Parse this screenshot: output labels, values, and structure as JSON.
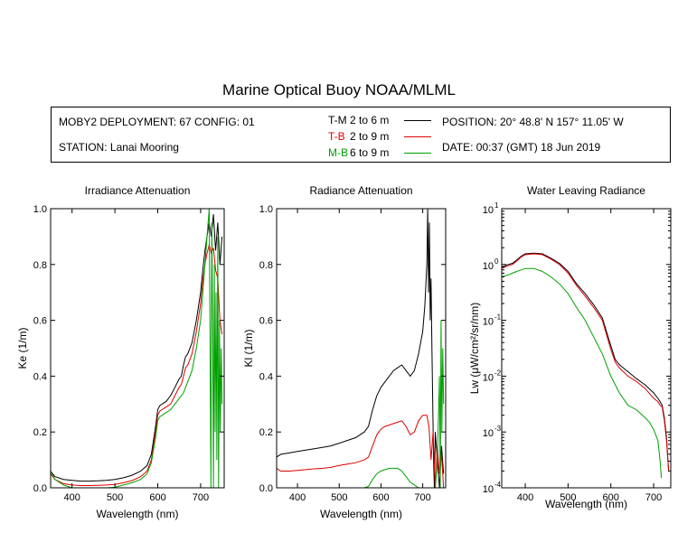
{
  "title": "Marine Optical Buoy NOAA/MLML",
  "info": {
    "deployment": "MOBY2 DEPLOYMENT: 67 CONFIG: 01",
    "station": "STATION: Lanai Mooring",
    "position": "POSITION: 20° 48.8' N   157° 11.05' W",
    "date": "DATE: 00:37 (GMT) 18 Jun 2019"
  },
  "legend": [
    {
      "code": "T-M",
      "range": "2 to 6  m",
      "color": "#000000"
    },
    {
      "code": "T-B",
      "range": "2 to 9  m",
      "color": "#dd0000"
    },
    {
      "code": "M-B",
      "range": "6 to 9  m",
      "color": "#00a000"
    }
  ],
  "chart_data": [
    {
      "type": "line",
      "title": "Irradiance Attenuation",
      "xlabel": "Wavelength (nm)",
      "ylabel": "Ke  (1/m)",
      "xlim": [
        350,
        755
      ],
      "ylim": [
        0,
        1.0
      ],
      "xticks": [
        400,
        500,
        600,
        700
      ],
      "yticks": [
        0.0,
        0.2,
        0.4,
        0.6,
        0.8,
        1.0
      ],
      "ytick_labels": [
        "0.0",
        "0.2",
        "0.4",
        "0.6",
        "0.8",
        "1.0"
      ],
      "series": [
        {
          "name": "T-M",
          "color": "#000000",
          "x": [
            350,
            360,
            380,
            400,
            420,
            440,
            460,
            480,
            500,
            520,
            540,
            560,
            575,
            585,
            595,
            600,
            605,
            610,
            615,
            620,
            630,
            640,
            650,
            655,
            660,
            665,
            670,
            680,
            690,
            700,
            705,
            710,
            715,
            720,
            725,
            730,
            735,
            740,
            745,
            750
          ],
          "y": [
            0.06,
            0.04,
            0.03,
            0.027,
            0.024,
            0.024,
            0.025,
            0.027,
            0.03,
            0.036,
            0.045,
            0.06,
            0.08,
            0.12,
            0.22,
            0.28,
            0.295,
            0.3,
            0.305,
            0.31,
            0.33,
            0.36,
            0.39,
            0.4,
            0.44,
            0.47,
            0.48,
            0.52,
            0.6,
            0.7,
            0.78,
            0.85,
            0.9,
            0.95,
            0.9,
            0.98,
            0.85,
            0.95,
            0.8,
            0.9
          ]
        },
        {
          "name": "T-B",
          "color": "#dd0000",
          "x": [
            350,
            360,
            380,
            400,
            420,
            440,
            460,
            480,
            500,
            520,
            540,
            560,
            575,
            585,
            595,
            600,
            605,
            610,
            615,
            620,
            630,
            640,
            650,
            655,
            660,
            665,
            670,
            680,
            690,
            700,
            705,
            710,
            715,
            720,
            725,
            730,
            735,
            740,
            745,
            750
          ],
          "y": [
            0.05,
            0.03,
            0.015,
            0.01,
            0.008,
            0.008,
            0.009,
            0.01,
            0.012,
            0.018,
            0.026,
            0.04,
            0.06,
            0.1,
            0.2,
            0.26,
            0.275,
            0.28,
            0.285,
            0.29,
            0.3,
            0.33,
            0.36,
            0.37,
            0.4,
            0.43,
            0.44,
            0.48,
            0.56,
            0.66,
            0.74,
            0.8,
            0.84,
            0.87,
            0.84,
            0.86,
            0.78,
            0.75,
            0.6,
            0.55
          ]
        },
        {
          "name": "M-B",
          "color": "#00a000",
          "x": [
            350,
            360,
            380,
            400,
            420,
            440,
            460,
            480,
            500,
            520,
            540,
            560,
            575,
            585,
            595,
            600,
            605,
            610,
            615,
            620,
            630,
            640,
            650,
            660,
            670,
            680,
            690,
            700,
            705,
            710,
            715,
            720,
            722,
            724,
            726,
            728,
            730,
            732,
            734,
            736,
            738,
            740,
            742,
            744,
            746,
            748,
            750
          ],
          "y": [
            0.06,
            0.03,
            0.01,
            0.0,
            0.0,
            0.0,
            0.0,
            0.0,
            0.002,
            0.01,
            0.018,
            0.03,
            0.05,
            0.09,
            0.18,
            0.24,
            0.255,
            0.26,
            0.265,
            0.27,
            0.28,
            0.3,
            0.32,
            0.34,
            0.38,
            0.42,
            0.5,
            0.6,
            0.7,
            0.8,
            0.9,
            1.0,
            0.5,
            0.0,
            0.95,
            0.6,
            0.0,
            0.8,
            0.2,
            0.7,
            0.1,
            0.9,
            0.0,
            0.6,
            0.2,
            0.5,
            0.3
          ]
        }
      ]
    },
    {
      "type": "line",
      "title": "Radiance Attenuation",
      "xlabel": "Wavelength (nm)",
      "ylabel": "Kl  (1/m)",
      "xlim": [
        350,
        755
      ],
      "ylim": [
        0,
        1.0
      ],
      "xticks": [
        400,
        500,
        600,
        700
      ],
      "yticks": [
        0.0,
        0.2,
        0.4,
        0.6,
        0.8,
        1.0
      ],
      "ytick_labels": [
        "0.0",
        "0.2",
        "0.4",
        "0.6",
        "0.8",
        "1.0"
      ],
      "series": [
        {
          "name": "T-M",
          "color": "#000000",
          "x": [
            350,
            360,
            380,
            400,
            420,
            440,
            460,
            480,
            500,
            520,
            540,
            560,
            570,
            580,
            590,
            600,
            610,
            620,
            630,
            640,
            650,
            660,
            670,
            680,
            690,
            700,
            705,
            710,
            712,
            714,
            716,
            718,
            720,
            722,
            724,
            726,
            728,
            730,
            735,
            740,
            745,
            750
          ],
          "y": [
            0.11,
            0.12,
            0.125,
            0.13,
            0.135,
            0.14,
            0.145,
            0.15,
            0.16,
            0.17,
            0.18,
            0.2,
            0.22,
            0.28,
            0.33,
            0.36,
            0.38,
            0.4,
            0.42,
            0.43,
            0.44,
            0.42,
            0.4,
            0.42,
            0.48,
            0.56,
            0.65,
            0.8,
            1.0,
            0.7,
            0.95,
            0.6,
            0.75,
            0.5,
            0.3,
            0.1,
            0.0,
            0.2,
            0.1,
            0.0,
            0.15,
            0.05
          ]
        },
        {
          "name": "T-B",
          "color": "#dd0000",
          "x": [
            350,
            360,
            380,
            400,
            420,
            440,
            460,
            480,
            500,
            520,
            540,
            560,
            570,
            580,
            590,
            600,
            610,
            620,
            630,
            640,
            650,
            660,
            670,
            680,
            690,
            700,
            710,
            715,
            720,
            725,
            730,
            735,
            740,
            745,
            750
          ],
          "y": [
            0.07,
            0.06,
            0.06,
            0.062,
            0.065,
            0.068,
            0.07,
            0.073,
            0.08,
            0.085,
            0.09,
            0.1,
            0.11,
            0.15,
            0.19,
            0.21,
            0.22,
            0.225,
            0.23,
            0.235,
            0.24,
            0.22,
            0.19,
            0.2,
            0.24,
            0.26,
            0.26,
            0.22,
            0.1,
            0.2,
            0.0,
            0.15,
            0.05,
            0.12,
            0.0
          ]
        },
        {
          "name": "M-B",
          "color": "#00a000",
          "x": [
            350,
            360,
            380,
            400,
            420,
            440,
            460,
            480,
            500,
            520,
            540,
            560,
            570,
            580,
            590,
            600,
            610,
            620,
            630,
            640,
            650,
            660,
            670,
            680,
            690,
            700,
            710,
            720,
            725,
            730,
            735,
            740,
            742,
            744,
            746,
            748,
            750
          ],
          "y": [
            0.0,
            0.0,
            0.0,
            0.0,
            0.0,
            0.0,
            0.0,
            0.0,
            0.0,
            0.0,
            0.0,
            0.0,
            0.005,
            0.03,
            0.05,
            0.06,
            0.065,
            0.07,
            0.07,
            0.07,
            0.06,
            0.04,
            0.02,
            0.01,
            0.0,
            0.0,
            0.0,
            0.0,
            0.0,
            0.0,
            0.1,
            0.4,
            0.0,
            0.6,
            0.2,
            0.5,
            0.3
          ]
        }
      ]
    },
    {
      "type": "line",
      "title": "Water Leaving Radiance",
      "xlabel": "Wavelength (nm)",
      "ylabel": "Lw  (μW/cm²/sr/nm)",
      "yscale": "log",
      "xlim": [
        345,
        740
      ],
      "ylim": [
        0.0001,
        10
      ],
      "xticks": [
        400,
        500,
        600,
        700
      ],
      "yticks": [
        10,
        1,
        0.1,
        0.01,
        0.001,
        0.0001
      ],
      "ytick_base": "10",
      "ytick_exponents": [
        "1",
        "0",
        "-1",
        "-2",
        "-3",
        "-4"
      ],
      "series": [
        {
          "name": "T-M",
          "color": "#000000",
          "x": [
            345,
            360,
            370,
            380,
            390,
            400,
            420,
            440,
            460,
            480,
            500,
            520,
            540,
            560,
            580,
            600,
            610,
            620,
            640,
            660,
            680,
            700,
            710,
            715,
            720,
            725,
            730,
            735
          ],
          "y": [
            0.9,
            1.0,
            1.05,
            1.2,
            1.4,
            1.55,
            1.6,
            1.55,
            1.3,
            1.05,
            0.75,
            0.45,
            0.3,
            0.19,
            0.11,
            0.035,
            0.02,
            0.016,
            0.012,
            0.009,
            0.007,
            0.005,
            0.004,
            0.0035,
            0.003,
            0.0018,
            0.0008,
            0.0002
          ]
        },
        {
          "name": "T-B",
          "color": "#dd0000",
          "x": [
            345,
            360,
            370,
            380,
            390,
            400,
            420,
            440,
            460,
            480,
            500,
            520,
            540,
            560,
            580,
            600,
            610,
            620,
            640,
            660,
            680,
            700,
            710,
            715,
            720,
            725,
            730,
            735
          ],
          "y": [
            0.85,
            0.95,
            1.0,
            1.15,
            1.35,
            1.5,
            1.55,
            1.5,
            1.25,
            1.0,
            0.7,
            0.42,
            0.27,
            0.17,
            0.1,
            0.03,
            0.018,
            0.014,
            0.01,
            0.008,
            0.006,
            0.004,
            0.0035,
            0.003,
            0.0028,
            0.0016,
            0.0007,
            0.0002
          ]
        },
        {
          "name": "M-B",
          "color": "#00a000",
          "x": [
            345,
            360,
            370,
            380,
            390,
            400,
            420,
            440,
            460,
            480,
            500,
            520,
            540,
            560,
            580,
            600,
            620,
            640,
            660,
            680,
            690,
            700,
            710,
            715,
            718
          ],
          "y": [
            0.6,
            0.65,
            0.7,
            0.75,
            0.8,
            0.85,
            0.85,
            0.75,
            0.6,
            0.45,
            0.3,
            0.17,
            0.1,
            0.05,
            0.025,
            0.01,
            0.005,
            0.003,
            0.0025,
            0.0018,
            0.0015,
            0.0011,
            0.0007,
            0.0003,
            0.00015
          ]
        }
      ]
    }
  ]
}
